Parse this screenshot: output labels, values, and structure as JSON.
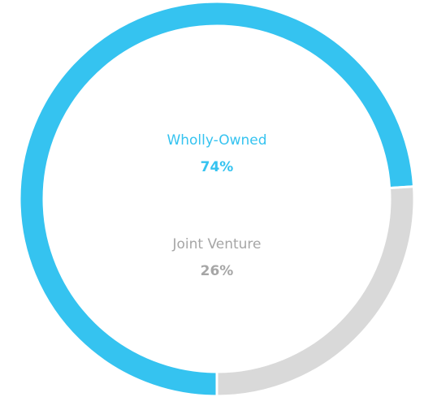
{
  "chart_data": {
    "type": "donut",
    "categories": [
      "Wholly-Owned",
      "Joint Venture"
    ],
    "values": [
      74,
      26
    ],
    "value_labels": [
      "74%",
      "26%"
    ],
    "colors": [
      "#35c3f0",
      "#d9d9d9"
    ],
    "label_colors": [
      "#35c3f0",
      "#a6a6a6"
    ]
  }
}
